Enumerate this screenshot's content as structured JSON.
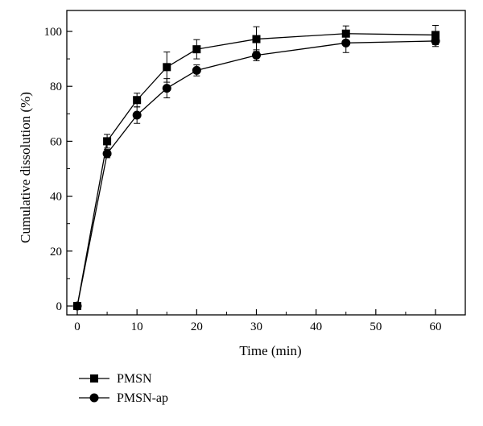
{
  "chart_data": {
    "type": "line",
    "title": "",
    "xlabel": "Time (min)",
    "ylabel": "Cumulative dissolution (%)",
    "xlim": [
      -1,
      66
    ],
    "ylim": [
      0,
      105
    ],
    "xticks": [
      0,
      10,
      20,
      30,
      40,
      50,
      60
    ],
    "yticks": [
      0,
      20,
      40,
      60,
      80,
      100
    ],
    "grid": false,
    "legend_position": "bottom-left",
    "series": [
      {
        "name": "PMSN",
        "marker": "square",
        "color": "#000000",
        "x": [
          0,
          5,
          10,
          15,
          20,
          30,
          45,
          60
        ],
        "y": [
          0,
          60,
          75,
          87,
          93.5,
          97.2,
          99.2,
          98.7
        ],
        "err": [
          0,
          2.5,
          2.5,
          5.5,
          3.5,
          4.5,
          2.8,
          3.5
        ]
      },
      {
        "name": "PMSN-ap",
        "marker": "circle",
        "color": "#000000",
        "x": [
          0,
          5,
          10,
          15,
          20,
          30,
          45,
          60
        ],
        "y": [
          0,
          55.5,
          69.5,
          79.3,
          85.8,
          91.3,
          95.8,
          96.5
        ],
        "err": [
          0,
          1.5,
          3,
          3.5,
          2,
          2,
          3.5,
          2
        ]
      }
    ]
  }
}
